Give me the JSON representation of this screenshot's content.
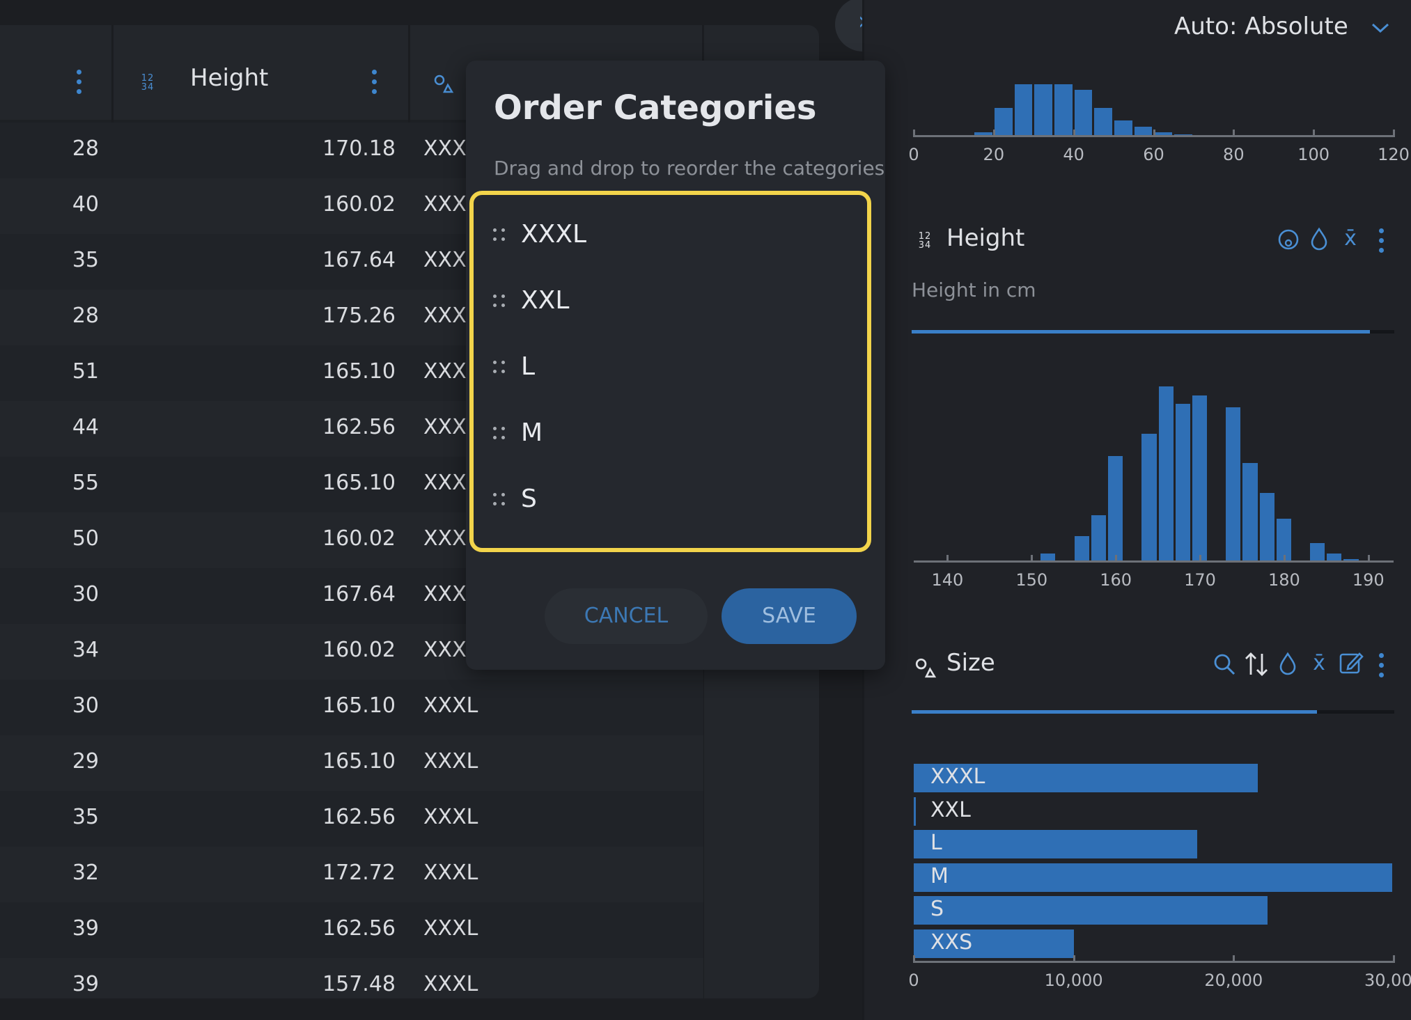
{
  "table": {
    "header": {
      "height_title": "Height"
    },
    "rows": [
      {
        "age": "28",
        "height": "170.18",
        "size": "XXXL"
      },
      {
        "age": "40",
        "height": "160.02",
        "size": "XXXL"
      },
      {
        "age": "35",
        "height": "167.64",
        "size": "XXXL"
      },
      {
        "age": "28",
        "height": "175.26",
        "size": "XXXL"
      },
      {
        "age": "51",
        "height": "165.10",
        "size": "XXXL"
      },
      {
        "age": "44",
        "height": "162.56",
        "size": "XXXL"
      },
      {
        "age": "55",
        "height": "165.10",
        "size": "XXXL"
      },
      {
        "age": "50",
        "height": "160.02",
        "size": "XXXL"
      },
      {
        "age": "30",
        "height": "167.64",
        "size": "XXXL"
      },
      {
        "age": "34",
        "height": "160.02",
        "size": "XXXL"
      },
      {
        "age": "30",
        "height": "165.10",
        "size": "XXXL"
      },
      {
        "age": "29",
        "height": "165.10",
        "size": "XXXL"
      },
      {
        "age": "35",
        "height": "162.56",
        "size": "XXXL"
      },
      {
        "age": "32",
        "height": "172.72",
        "size": "XXXL"
      },
      {
        "age": "39",
        "height": "162.56",
        "size": "XXXL"
      },
      {
        "age": "39",
        "height": "157.48",
        "size": "XXXL"
      }
    ]
  },
  "modal": {
    "title": "Order Categories",
    "subtitle": "Drag and drop to reorder the categories",
    "items": [
      "XXXL",
      "XXL",
      "L",
      "M",
      "S"
    ],
    "cancel_label": "CANCEL",
    "save_label": "SAVE"
  },
  "right_panel": {
    "mode_select": "Auto: Absolute",
    "height_column": {
      "title": "Height",
      "description": "Height in cm",
      "completeness": 0.95
    },
    "size_column": {
      "title": "Size",
      "completeness": 0.84
    }
  },
  "colors": {
    "accent": "#3a7fc8",
    "highlight": "#f2d44b",
    "background": "#1c1e22"
  },
  "chart_data": [
    {
      "type": "bar",
      "x_ticks": [
        0,
        20,
        40,
        60,
        80,
        100,
        120
      ],
      "xlim": [
        0,
        120
      ],
      "bin_width": 5,
      "bin_start": 15,
      "counts": [
        3,
        30,
        56,
        56,
        56,
        50,
        30,
        16,
        9,
        3,
        1
      ]
    },
    {
      "type": "bar",
      "x_ticks": [
        140,
        150,
        160,
        170,
        180,
        190
      ],
      "xlim": [
        136,
        193
      ],
      "bin_width": 2,
      "bin_start": 149,
      "counts": [
        0,
        4,
        0,
        14,
        26,
        60,
        0,
        73,
        100,
        90,
        95,
        0,
        88,
        56,
        39,
        24,
        0,
        10,
        4,
        1
      ]
    },
    {
      "type": "bar",
      "orientation": "horizontal",
      "categories": [
        "XXXL",
        "XXL",
        "L",
        "M",
        "S",
        "XXS"
      ],
      "values": [
        21500,
        100,
        17700,
        29900,
        22100,
        10000
      ],
      "x_ticks": [
        "0",
        "10,000",
        "20,000",
        "30,000"
      ],
      "x_tick_values": [
        0,
        10000,
        20000,
        30000
      ],
      "xlim": [
        0,
        30000
      ]
    }
  ]
}
